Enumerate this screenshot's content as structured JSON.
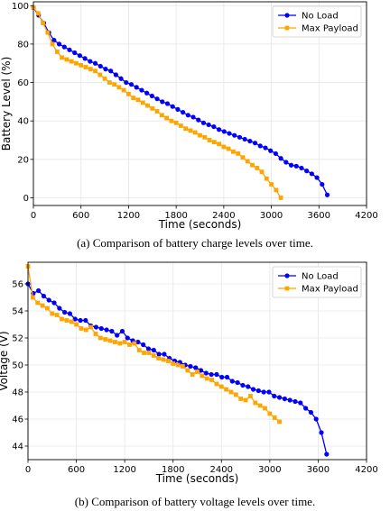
{
  "chart_data": [
    {
      "type": "line",
      "xlabel": "Time (seconds)",
      "ylabel": "Battery Level (%)",
      "caption": "(a) Comparison of battery charge levels over time.",
      "xlim": [
        0,
        4200
      ],
      "ylim": [
        -4,
        102
      ],
      "xticks": [
        0,
        600,
        1200,
        1800,
        2400,
        3000,
        3600,
        4200
      ],
      "yticks": [
        0,
        20,
        40,
        60,
        80,
        100
      ],
      "grid": true,
      "legend_position": "top-right",
      "series": [
        {
          "name": "No Load",
          "color": "#0000ff",
          "marker": "circle",
          "x": [
            0,
            65,
            130,
            195,
            260,
            325,
            390,
            455,
            520,
            585,
            650,
            715,
            780,
            845,
            910,
            975,
            1040,
            1105,
            1170,
            1235,
            1300,
            1365,
            1430,
            1495,
            1560,
            1625,
            1690,
            1755,
            1820,
            1885,
            1950,
            2015,
            2080,
            2145,
            2210,
            2275,
            2340,
            2405,
            2470,
            2535,
            2600,
            2665,
            2730,
            2795,
            2860,
            2925,
            2990,
            3055,
            3120,
            3185,
            3250,
            3315,
            3380,
            3445,
            3510,
            3575,
            3640,
            3705
          ],
          "y": [
            99,
            95,
            91,
            86,
            82,
            80,
            78.5,
            77,
            75.5,
            74,
            72.5,
            71,
            70,
            68.5,
            67,
            66,
            64,
            62,
            60,
            59,
            57.5,
            56,
            54.5,
            53,
            51.5,
            50,
            49,
            47.5,
            46,
            44.5,
            43,
            42,
            40.5,
            39,
            38,
            37,
            35.5,
            34.5,
            33.5,
            32.5,
            31.5,
            30.5,
            29.5,
            28.5,
            27,
            26,
            24.5,
            23,
            20.5,
            18.5,
            17,
            16.5,
            15.5,
            14,
            12.5,
            10.5,
            7,
            1.5
          ]
        },
        {
          "name": "Max Payload",
          "color": "#ffa500",
          "marker": "square",
          "x": [
            0,
            60,
            120,
            180,
            240,
            300,
            360,
            420,
            480,
            540,
            600,
            660,
            720,
            780,
            840,
            900,
            960,
            1020,
            1080,
            1140,
            1200,
            1260,
            1320,
            1380,
            1440,
            1500,
            1560,
            1620,
            1680,
            1740,
            1800,
            1860,
            1920,
            1980,
            2040,
            2100,
            2160,
            2220,
            2280,
            2340,
            2400,
            2460,
            2520,
            2580,
            2640,
            2700,
            2760,
            2820,
            2880,
            2940,
            3000,
            3060,
            3120
          ],
          "y": [
            99,
            96,
            91,
            86,
            80,
            76,
            73,
            72,
            71,
            70,
            69,
            68,
            67,
            66,
            64,
            62,
            60,
            59,
            57.5,
            56,
            54,
            52,
            51,
            49.5,
            48,
            46.5,
            45,
            43,
            41.5,
            40,
            39,
            37.5,
            36,
            35,
            34,
            32.5,
            31.5,
            30,
            29,
            28,
            26.5,
            25.5,
            24,
            23,
            21,
            19,
            17,
            15.5,
            13.5,
            10,
            7,
            4,
            0
          ]
        }
      ]
    },
    {
      "type": "line",
      "xlabel": "Time (seconds)",
      "ylabel": "Voltage (V)",
      "caption": "(b) Comparison of battery voltage levels over time.",
      "xlim": [
        0,
        4200
      ],
      "ylim": [
        43,
        57.6
      ],
      "xticks": [
        0,
        600,
        1200,
        1800,
        2400,
        3000,
        3600,
        4200
      ],
      "yticks": [
        44,
        46,
        48,
        50,
        52,
        54,
        56
      ],
      "grid": true,
      "legend_position": "top-right",
      "series": [
        {
          "name": "No Load",
          "color": "#0000ff",
          "marker": "circle",
          "x": [
            0,
            65,
            130,
            195,
            260,
            325,
            390,
            455,
            520,
            585,
            650,
            715,
            780,
            845,
            910,
            975,
            1040,
            1105,
            1170,
            1235,
            1300,
            1365,
            1430,
            1495,
            1560,
            1625,
            1690,
            1755,
            1820,
            1885,
            1950,
            2015,
            2080,
            2145,
            2210,
            2275,
            2340,
            2405,
            2470,
            2535,
            2600,
            2665,
            2730,
            2795,
            2860,
            2925,
            2990,
            3055,
            3120,
            3185,
            3250,
            3315,
            3380,
            3445,
            3510,
            3575,
            3640,
            3705
          ],
          "y": [
            56,
            55.3,
            55.5,
            55.1,
            54.8,
            54.6,
            54.2,
            53.9,
            53.8,
            53.4,
            53.3,
            53.3,
            52.9,
            52.8,
            52.7,
            52.6,
            52.5,
            52.2,
            52.5,
            52,
            51.8,
            51.7,
            51.5,
            51.2,
            51.1,
            50.8,
            50.8,
            50.5,
            50.3,
            50.2,
            50,
            49.9,
            49.8,
            49.6,
            49.4,
            49.3,
            49.3,
            49.1,
            49.1,
            48.8,
            48.7,
            48.5,
            48.4,
            48.2,
            48.1,
            48,
            48,
            47.7,
            47.6,
            47.5,
            47.4,
            47.3,
            47.2,
            46.8,
            46.5,
            46,
            45,
            43.4
          ]
        },
        {
          "name": "Max Payload",
          "color": "#ffa500",
          "marker": "square",
          "x": [
            0,
            60,
            120,
            180,
            240,
            300,
            360,
            420,
            480,
            540,
            600,
            660,
            720,
            780,
            840,
            900,
            960,
            1020,
            1080,
            1140,
            1200,
            1260,
            1320,
            1380,
            1440,
            1500,
            1560,
            1620,
            1680,
            1740,
            1800,
            1860,
            1920,
            1980,
            2040,
            2100,
            2160,
            2220,
            2280,
            2340,
            2400,
            2460,
            2520,
            2580,
            2640,
            2700,
            2760,
            2820,
            2880,
            2940,
            3000,
            3060,
            3120
          ],
          "y": [
            57.3,
            55,
            54.6,
            54.4,
            54.2,
            53.8,
            53.7,
            53.4,
            53.3,
            53.2,
            53,
            52.7,
            52.6,
            52.8,
            52.3,
            52,
            51.9,
            51.8,
            51.7,
            51.6,
            51.7,
            51.5,
            51.6,
            51.1,
            50.9,
            50.9,
            50.7,
            50.5,
            50.4,
            50.3,
            50.1,
            50,
            49.9,
            49.6,
            49.3,
            49.5,
            49.2,
            49,
            48.9,
            48.6,
            48.4,
            48.2,
            48,
            47.8,
            47.5,
            47.4,
            47.7,
            47.2,
            47,
            46.8,
            46.4,
            46.1,
            45.8
          ]
        }
      ]
    }
  ]
}
